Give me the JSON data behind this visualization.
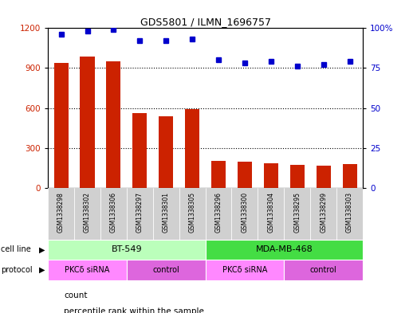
{
  "title": "GDS5801 / ILMN_1696757",
  "samples": [
    "GSM1338298",
    "GSM1338302",
    "GSM1338306",
    "GSM1338297",
    "GSM1338301",
    "GSM1338305",
    "GSM1338296",
    "GSM1338300",
    "GSM1338304",
    "GSM1338295",
    "GSM1338299",
    "GSM1338303"
  ],
  "counts": [
    940,
    985,
    950,
    560,
    535,
    590,
    200,
    195,
    185,
    175,
    165,
    180
  ],
  "percentiles": [
    96,
    98,
    99,
    92,
    92,
    93,
    80,
    78,
    79,
    76,
    77,
    79
  ],
  "bar_color": "#cc2200",
  "dot_color": "#0000cc",
  "left_ylim": [
    0,
    1200
  ],
  "right_ylim": [
    0,
    100
  ],
  "left_yticks": [
    0,
    300,
    600,
    900,
    1200
  ],
  "right_yticks": [
    0,
    25,
    50,
    75,
    100
  ],
  "right_yticklabels": [
    "0",
    "25",
    "50",
    "75",
    "100%"
  ],
  "cell_line_groups": [
    {
      "label": "BT-549",
      "start": 0,
      "end": 6,
      "color": "#bbffbb"
    },
    {
      "label": "MDA-MB-468",
      "start": 6,
      "end": 12,
      "color": "#44dd44"
    }
  ],
  "protocol_groups": [
    {
      "label": "PKCδ siRNA",
      "start": 0,
      "end": 3,
      "color": "#ff88ff"
    },
    {
      "label": "control",
      "start": 3,
      "end": 6,
      "color": "#dd66dd"
    },
    {
      "label": "PKCδ siRNA",
      "start": 6,
      "end": 9,
      "color": "#ff88ff"
    },
    {
      "label": "control",
      "start": 9,
      "end": 12,
      "color": "#dd66dd"
    }
  ],
  "bg_color": "#ffffff",
  "grid_color": "#000000",
  "tick_label_color_left": "#cc2200",
  "tick_label_color_right": "#0000cc",
  "sample_bg_color": "#d0d0d0",
  "legend_count_color": "#cc2200",
  "legend_pct_color": "#0000cc"
}
